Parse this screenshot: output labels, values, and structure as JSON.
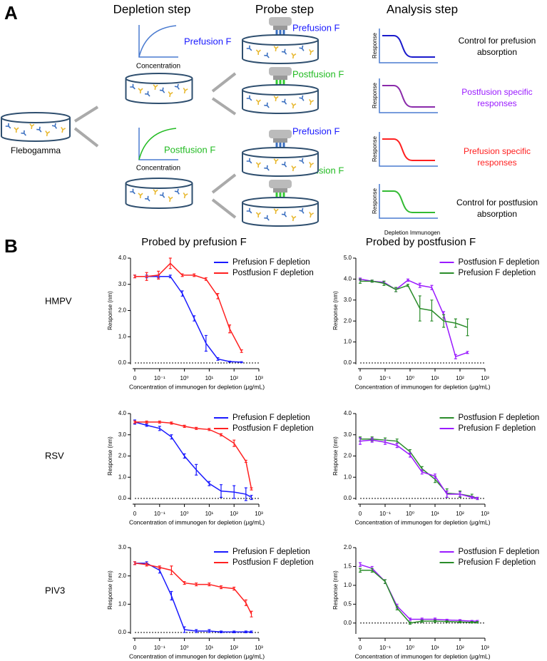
{
  "diagram": {
    "panel": "A",
    "steps": [
      "Depletion step",
      "Probe step",
      "Analysis step"
    ],
    "source": "Flebogamma",
    "depletion": [
      {
        "antigen": "Prefusion F",
        "axis": "Concentration"
      },
      {
        "antigen": "Postfusion F",
        "axis": "Concentration"
      }
    ],
    "probes": [
      "Prefusion F",
      "Postfusion F",
      "Prefusion F",
      "Postfusion F"
    ],
    "analysis": [
      {
        "axis": "Response",
        "outcome": [
          "Control for prefusion",
          "absorption"
        ]
      },
      {
        "axis": "Response",
        "outcome": [
          "Postfusion specific",
          "responses"
        ]
      },
      {
        "axis": "Response",
        "outcome": [
          "Prefusion specific",
          "responses"
        ]
      },
      {
        "axis": "Response",
        "outcome": [
          "Control for postfusion",
          "absorption"
        ]
      }
    ],
    "analysis_x_label": "Depletion Immunogen"
  },
  "panel_b": {
    "label": "B",
    "column_titles": [
      "Probed by prefusion F",
      "Probed by postfusion F"
    ],
    "row_labels": [
      "HMPV",
      "RSV",
      "PIV3"
    ]
  },
  "chart_data": [
    {
      "type": "line",
      "x_label": "Concentration of immunogen for depletion (μg/mL)",
      "y_label": "Response (nm)",
      "xscale": "log",
      "x": [
        0,
        0.03,
        0.09,
        0.27,
        0.82,
        2.47,
        7.4,
        22.2,
        66.7,
        200
      ],
      "xlim": [
        0.01,
        1000
      ],
      "xticks": [
        0,
        {
          "value": 0.1,
          "label": "10⁻¹"
        },
        {
          "value": 1,
          "label": "10⁰"
        },
        {
          "value": 10,
          "label": "10¹"
        },
        {
          "value": 100,
          "label": "10²"
        },
        {
          "value": 1000,
          "label": "10³"
        }
      ],
      "ylim": [
        0,
        4
      ],
      "yticks": [
        {
          "value": 0,
          "label": "0.0"
        },
        {
          "value": 1,
          "label": "1.0"
        },
        {
          "value": 2,
          "label": "2.0"
        },
        {
          "value": 3,
          "label": "3.0"
        },
        {
          "value": 4,
          "label": "4.0"
        }
      ],
      "zero_line": true,
      "legend": "upper right",
      "series": [
        {
          "name": "Prefusion F depletion",
          "color": "#1a1aff",
          "values": [
            3.3,
            3.3,
            3.3,
            3.3,
            2.65,
            1.7,
            0.75,
            0.15,
            0.05,
            0.03
          ],
          "errors": [
            0.05,
            0.05,
            0.05,
            0.05,
            0.1,
            0.1,
            0.3,
            0.05,
            0.02,
            0.02
          ]
        },
        {
          "name": "Postfusion F depletion",
          "color": "#ff2020",
          "values": [
            3.3,
            3.3,
            3.35,
            3.8,
            3.35,
            3.35,
            3.2,
            2.55,
            1.3,
            0.45
          ],
          "errors": [
            0.05,
            0.15,
            0.15,
            0.2,
            0.05,
            0.05,
            0.05,
            0.1,
            0.15,
            0.05
          ]
        }
      ]
    },
    {
      "type": "line",
      "x_label": "Concentration of immunogen for depletion (μg/mL)",
      "y_label": "Response (nm)",
      "xscale": "log",
      "x": [
        0,
        0.03,
        0.09,
        0.27,
        0.82,
        2.47,
        7.4,
        22.2,
        66.7,
        200
      ],
      "xlim": [
        0.01,
        1000
      ],
      "xticks": [
        0,
        {
          "value": 0.1,
          "label": "10⁻¹"
        },
        {
          "value": 1,
          "label": "10⁰"
        },
        {
          "value": 10,
          "label": "10¹"
        },
        {
          "value": 100,
          "label": "10²"
        },
        {
          "value": 1000,
          "label": "10³"
        }
      ],
      "ylim": [
        0,
        5
      ],
      "yticks": [
        {
          "value": 0,
          "label": "0.0"
        },
        {
          "value": 1,
          "label": "1.0"
        },
        {
          "value": 2,
          "label": "2.0"
        },
        {
          "value": 3,
          "label": "3.0"
        },
        {
          "value": 4,
          "label": "4.0"
        },
        {
          "value": 5,
          "label": "5.0"
        }
      ],
      "zero_line": true,
      "legend": "upper right",
      "series": [
        {
          "name": "Postfusion F depletion",
          "color": "#9a1aff",
          "values": [
            4.0,
            3.9,
            3.85,
            3.5,
            3.95,
            3.7,
            3.6,
            2.3,
            0.3,
            0.5
          ],
          "errors": [
            0.05,
            0.05,
            0.05,
            0.1,
            0.05,
            0.1,
            0.1,
            0.15,
            0.1,
            0.05
          ]
        },
        {
          "name": "Prefusion F depletion",
          "color": "#2a8c2a",
          "values": [
            3.9,
            3.9,
            3.8,
            3.5,
            3.7,
            2.6,
            2.5,
            2.0,
            1.9,
            1.7
          ],
          "errors": [
            0.1,
            0.05,
            0.1,
            0.1,
            0.05,
            0.6,
            0.5,
            0.3,
            0.2,
            0.4
          ]
        }
      ]
    },
    {
      "type": "line",
      "x_label": "Concentration of immunogen for depletion (μg/mL)",
      "y_label": "Response (nm)",
      "xscale": "log",
      "x": [
        0,
        0.03,
        0.1,
        0.3,
        1,
        3,
        10,
        30,
        100,
        300,
        500
      ],
      "xlim": [
        0.01,
        1000
      ],
      "xticks": [
        0,
        {
          "value": 0.1,
          "label": "10⁻¹"
        },
        {
          "value": 1,
          "label": "10⁰"
        },
        {
          "value": 10,
          "label": "10¹"
        },
        {
          "value": 100,
          "label": "10²"
        },
        {
          "value": 1000,
          "label": "10³"
        }
      ],
      "ylim": [
        0,
        4
      ],
      "yticks": [
        {
          "value": 0,
          "label": "0.0"
        },
        {
          "value": 1,
          "label": "1.0"
        },
        {
          "value": 2,
          "label": "2.0"
        },
        {
          "value": 3,
          "label": "3.0"
        },
        {
          "value": 4,
          "label": "4.0"
        }
      ],
      "zero_line": true,
      "legend": "upper right",
      "series": [
        {
          "name": "Prefusion F depletion",
          "color": "#1a1aff",
          "values": [
            3.6,
            3.45,
            3.3,
            2.9,
            2.0,
            1.35,
            0.7,
            0.35,
            0.3,
            0.2,
            0.05
          ],
          "errors": [
            0.1,
            0.05,
            0.1,
            0.1,
            0.1,
            0.25,
            0.1,
            0.3,
            0.3,
            0.3,
            0.1
          ]
        },
        {
          "name": "Postfusion F depletion",
          "color": "#ff2020",
          "values": [
            3.6,
            3.6,
            3.6,
            3.55,
            3.4,
            3.3,
            3.25,
            3.0,
            2.6,
            1.75,
            0.45
          ],
          "errors": [
            0.05,
            0.05,
            0.05,
            0.05,
            0.05,
            0.05,
            0.05,
            0.05,
            0.15,
            0.05,
            0.05
          ]
        }
      ]
    },
    {
      "type": "line",
      "x_label": "Concentration of immunogen for depletion (μg/mL)",
      "y_label": "Response (nm)",
      "xscale": "log",
      "x": [
        0,
        0.03,
        0.1,
        0.3,
        1,
        3,
        10,
        30,
        100,
        300,
        500
      ],
      "xlim": [
        0.01,
        1000
      ],
      "xticks": [
        0,
        {
          "value": 0.1,
          "label": "10⁻¹"
        },
        {
          "value": 1,
          "label": "10⁰"
        },
        {
          "value": 10,
          "label": "10¹"
        },
        {
          "value": 100,
          "label": "10²"
        },
        {
          "value": 1000,
          "label": "10³"
        }
      ],
      "ylim": [
        0,
        4
      ],
      "yticks": [
        {
          "value": 0,
          "label": "0.0"
        },
        {
          "value": 1,
          "label": "1.0"
        },
        {
          "value": 2,
          "label": "2.0"
        },
        {
          "value": 3,
          "label": "3.0"
        },
        {
          "value": 4,
          "label": "4.0"
        }
      ],
      "zero_line": true,
      "legend": "upper right",
      "series": [
        {
          "name": "Postfusion F depletion",
          "color": "#2a8c2a",
          "values": [
            2.8,
            2.8,
            2.75,
            2.7,
            2.2,
            1.4,
            0.9,
            0.25,
            0.2,
            0.1,
            0.0
          ],
          "errors": [
            0.1,
            0.1,
            0.1,
            0.1,
            0.1,
            0.1,
            0.15,
            0.2,
            0.15,
            0.1,
            0.05
          ]
        },
        {
          "name": "Prefusion F depletion",
          "color": "#9a1aff",
          "values": [
            2.7,
            2.75,
            2.65,
            2.5,
            2.05,
            1.25,
            1.05,
            0.2,
            0.2,
            0.05,
            0.0
          ],
          "errors": [
            0.15,
            0.1,
            0.1,
            0.1,
            0.1,
            0.1,
            0.1,
            0.15,
            0.1,
            0.05,
            0.05
          ]
        }
      ]
    },
    {
      "type": "line",
      "x_label": "Concentration of immunogen for depletion (μg/mL)",
      "y_label": "Response (nm)",
      "xscale": "log",
      "x": [
        0,
        0.03,
        0.1,
        0.3,
        1,
        3,
        10,
        30,
        100,
        300,
        500
      ],
      "xlim": [
        0.01,
        1000
      ],
      "xticks": [
        0,
        {
          "value": 0.1,
          "label": "10⁻¹"
        },
        {
          "value": 1,
          "label": "10⁰"
        },
        {
          "value": 10,
          "label": "10¹"
        },
        {
          "value": 100,
          "label": "10²"
        },
        {
          "value": 1000,
          "label": "10³"
        }
      ],
      "ylim": [
        0,
        3
      ],
      "yticks": [
        {
          "value": 0,
          "label": "0.0"
        },
        {
          "value": 1,
          "label": "1.0"
        },
        {
          "value": 2,
          "label": "2.0"
        },
        {
          "value": 3,
          "label": "3.0"
        }
      ],
      "zero_line": true,
      "legend": "upper right",
      "series": [
        {
          "name": "Prefusion F depletion",
          "color": "#1a1aff",
          "values": [
            2.45,
            2.45,
            2.2,
            1.3,
            0.1,
            0.05,
            0.05,
            0.02,
            0.02,
            0.02,
            0.02
          ],
          "errors": [
            0.05,
            0.05,
            0.1,
            0.15,
            0.1,
            0.05,
            0.05,
            0.03,
            0.03,
            0.03,
            0.03
          ]
        },
        {
          "name": "Postfusion F depletion",
          "color": "#ff2020",
          "values": [
            2.45,
            2.4,
            2.3,
            2.2,
            1.75,
            1.7,
            1.7,
            1.6,
            1.55,
            1.05,
            0.65
          ],
          "errors": [
            0.05,
            0.05,
            0.05,
            0.15,
            0.05,
            0.05,
            0.05,
            0.05,
            0.05,
            0.1,
            0.1
          ]
        }
      ]
    },
    {
      "type": "line",
      "x_label": "Concentration of immunogen for depletion (μg/mL)",
      "y_label": "Response (nm)",
      "xscale": "log",
      "x": [
        0,
        0.03,
        0.1,
        0.3,
        1,
        3,
        10,
        30,
        100,
        300,
        500
      ],
      "xlim": [
        0.01,
        1000
      ],
      "xticks": [
        0,
        {
          "value": 0.1,
          "label": "10⁻¹"
        },
        {
          "value": 1,
          "label": "10⁰"
        },
        {
          "value": 10,
          "label": "10¹"
        },
        {
          "value": 100,
          "label": "10²"
        },
        {
          "value": 1000,
          "label": "10³"
        }
      ],
      "ylim": [
        -0.25,
        2
      ],
      "yticks": [
        {
          "value": 0,
          "label": "0.0"
        },
        {
          "value": 0.5,
          "label": "0.5"
        },
        {
          "value": 1,
          "label": "1.0"
        },
        {
          "value": 1.5,
          "label": "1.5"
        },
        {
          "value": 2,
          "label": "2.0"
        }
      ],
      "zero_line": true,
      "legend": "upper right",
      "series": [
        {
          "name": "Postfusion F depletion",
          "color": "#9a1aff",
          "values": [
            1.55,
            1.45,
            1.1,
            0.45,
            0.1,
            0.1,
            0.1,
            0.08,
            0.07,
            0.05,
            0.05
          ],
          "errors": [
            0.05,
            0.05,
            0.05,
            0.05,
            0.03,
            0.03,
            0.03,
            0.02,
            0.02,
            0.02,
            0.02
          ]
        },
        {
          "name": "Prefusion F depletion",
          "color": "#2a8c2a",
          "values": [
            1.4,
            1.4,
            1.1,
            0.4,
            0.0,
            0.05,
            0.05,
            0.04,
            0.03,
            0.02,
            0.02
          ],
          "errors": [
            0.05,
            0.05,
            0.05,
            0.05,
            0.03,
            0.03,
            0.03,
            0.02,
            0.02,
            0.02,
            0.02
          ]
        }
      ]
    }
  ]
}
